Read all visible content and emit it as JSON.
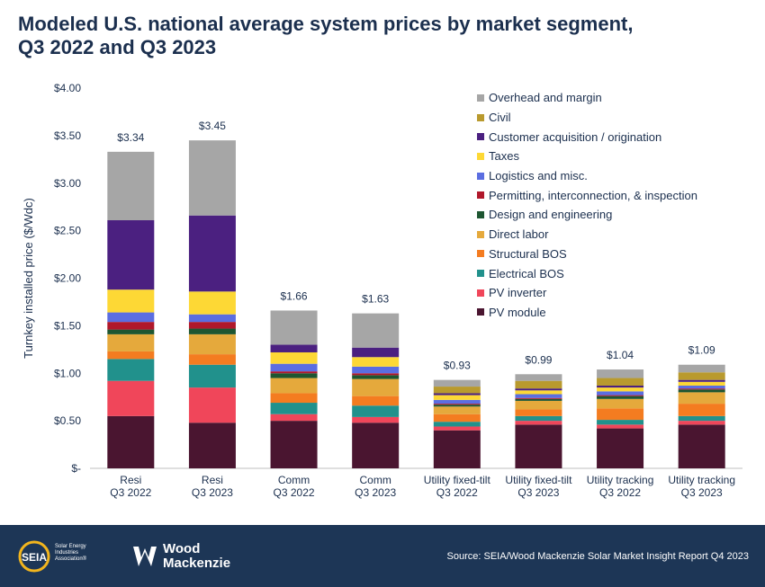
{
  "title": {
    "line1": "Modeled U.S. national average system prices by market segment,",
    "line2": "Q3 2022 and Q3 2023"
  },
  "chart_data": {
    "type": "bar",
    "stacked": true,
    "ylabel": "Turnkey installed price ($/Wdc)",
    "ylim": [
      0,
      4.0
    ],
    "yticks": [
      "$-",
      "$0.50",
      "$1.00",
      "$1.50",
      "$2.00",
      "$2.50",
      "$3.00",
      "$3.50",
      "$4.00"
    ],
    "grid": false,
    "legend_position": "top-right",
    "categories": [
      [
        "Resi",
        "Q3 2022"
      ],
      [
        "Resi",
        "Q3 2023"
      ],
      [
        "Comm",
        "Q3 2022"
      ],
      [
        "Comm",
        "Q3 2023"
      ],
      [
        "Utility fixed-tilt",
        "Q3 2022"
      ],
      [
        "Utility fixed-tilt",
        "Q3 2023"
      ],
      [
        "Utility tracking",
        "Q3 2022"
      ],
      [
        "Utility tracking",
        "Q3 2023"
      ]
    ],
    "totals": [
      "$3.34",
      "$3.45",
      "$1.66",
      "$1.63",
      "$0.93",
      "$0.99",
      "$1.04",
      "$1.09"
    ],
    "series": [
      {
        "name": "PV module",
        "color": "#4a1530",
        "values": [
          0.55,
          0.48,
          0.5,
          0.48,
          0.4,
          0.46,
          0.42,
          0.46
        ]
      },
      {
        "name": "PV inverter",
        "color": "#f0465a",
        "values": [
          0.37,
          0.37,
          0.07,
          0.06,
          0.04,
          0.04,
          0.04,
          0.04
        ]
      },
      {
        "name": "Electrical BOS",
        "color": "#21918c",
        "values": [
          0.23,
          0.24,
          0.12,
          0.12,
          0.05,
          0.05,
          0.05,
          0.05
        ]
      },
      {
        "name": "Structural BOS",
        "color": "#f47c20",
        "values": [
          0.08,
          0.11,
          0.1,
          0.1,
          0.08,
          0.07,
          0.12,
          0.13
        ]
      },
      {
        "name": "Direct labor",
        "color": "#e5a93c",
        "values": [
          0.18,
          0.21,
          0.16,
          0.18,
          0.08,
          0.09,
          0.1,
          0.12
        ]
      },
      {
        "name": "Design and engineering",
        "color": "#1e5631",
        "values": [
          0.05,
          0.06,
          0.05,
          0.04,
          0.02,
          0.02,
          0.03,
          0.03
        ]
      },
      {
        "name": "Permitting, interconnection, & inspection",
        "color": "#b0182b",
        "values": [
          0.08,
          0.07,
          0.02,
          0.02,
          0.01,
          0.01,
          0.01,
          0.01
        ]
      },
      {
        "name": "Logistics and misc.",
        "color": "#5b6ee1",
        "values": [
          0.1,
          0.08,
          0.08,
          0.07,
          0.04,
          0.04,
          0.04,
          0.03
        ]
      },
      {
        "name": "Taxes",
        "color": "#fdd835",
        "values": [
          0.24,
          0.24,
          0.12,
          0.1,
          0.05,
          0.04,
          0.04,
          0.04
        ]
      },
      {
        "name": "Customer acquisition / origination",
        "color": "#4b2080",
        "values": [
          0.73,
          0.8,
          0.08,
          0.1,
          0.02,
          0.02,
          0.02,
          0.02
        ]
      },
      {
        "name": "Civil",
        "color": "#b99a2e",
        "values": [
          0.0,
          0.0,
          0.0,
          0.0,
          0.07,
          0.08,
          0.08,
          0.08
        ]
      },
      {
        "name": "Overhead and margin",
        "color": "#a6a6a6",
        "values": [
          0.72,
          0.79,
          0.36,
          0.36,
          0.07,
          0.07,
          0.09,
          0.08
        ]
      }
    ]
  },
  "footer": {
    "seia_logo_text": "SEIA",
    "seia_sub": "Solar Energy Industries Association®",
    "wm_line1": "Wood",
    "wm_line2": "Mackenzie",
    "source": "Source: SEIA/Wood Mackenzie Solar Market Insight Report Q4 2023"
  }
}
